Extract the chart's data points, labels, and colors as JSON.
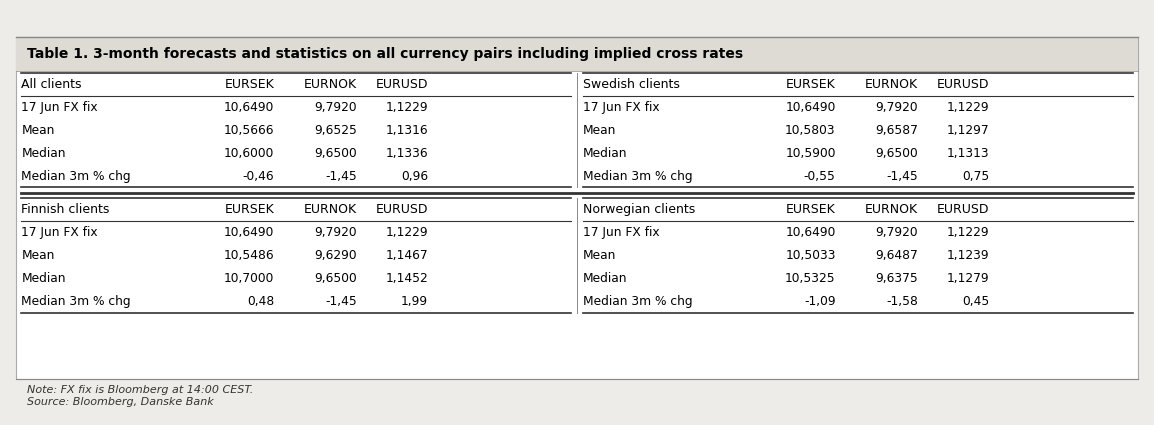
{
  "title": "Table 1. 3-month forecasts and statistics on all currency pairs including implied cross rates",
  "note": "Note: FX fix is Bloomberg at 14:00 CEST.",
  "source": "Source: Bloomberg, Danske Bank",
  "bg_color": "#eeece8",
  "sections": [
    {
      "header": [
        "All clients",
        "EURSEK",
        "EURNOK",
        "EURUSD"
      ],
      "rows": [
        [
          "17 Jun FX fix",
          "10,6490",
          "9,7920",
          "1,1229"
        ],
        [
          "Mean",
          "10,5666",
          "9,6525",
          "1,1316"
        ],
        [
          "Median",
          "10,6000",
          "9,6500",
          "1,1336"
        ],
        [
          "Median 3m % chg",
          "-0,46",
          "-1,45",
          "0,96"
        ]
      ]
    },
    {
      "header": [
        "Swedish clients",
        "EURSEK",
        "EURNOK",
        "EURUSD"
      ],
      "rows": [
        [
          "17 Jun FX fix",
          "10,6490",
          "9,7920",
          "1,1229"
        ],
        [
          "Mean",
          "10,5803",
          "9,6587",
          "1,1297"
        ],
        [
          "Median",
          "10,5900",
          "9,6500",
          "1,1313"
        ],
        [
          "Median 3m % chg",
          "-0,55",
          "-1,45",
          "0,75"
        ]
      ]
    },
    {
      "header": [
        "Finnish clients",
        "EURSEK",
        "EURNOK",
        "EURUSD"
      ],
      "rows": [
        [
          "17 Jun FX fix",
          "10,6490",
          "9,7920",
          "1,1229"
        ],
        [
          "Mean",
          "10,5486",
          "9,6290",
          "1,1467"
        ],
        [
          "Median",
          "10,7000",
          "9,6500",
          "1,1452"
        ],
        [
          "Median 3m % chg",
          "0,48",
          "-1,45",
          "1,99"
        ]
      ]
    },
    {
      "header": [
        "Norwegian clients",
        "EURSEK",
        "EURNOK",
        "EURUSD"
      ],
      "rows": [
        [
          "17 Jun FX fix",
          "10,6490",
          "9,7920",
          "1,1229"
        ],
        [
          "Mean",
          "10,5033",
          "9,6487",
          "1,1239"
        ],
        [
          "Median",
          "10,5325",
          "9,6375",
          "1,1279"
        ],
        [
          "Median 3m % chg",
          "-1,09",
          "-1,58",
          "0,45"
        ]
      ]
    }
  ],
  "header_fontsize": 9.0,
  "row_fontsize": 8.8,
  "title_fontsize": 10.0,
  "note_fontsize": 8.0
}
